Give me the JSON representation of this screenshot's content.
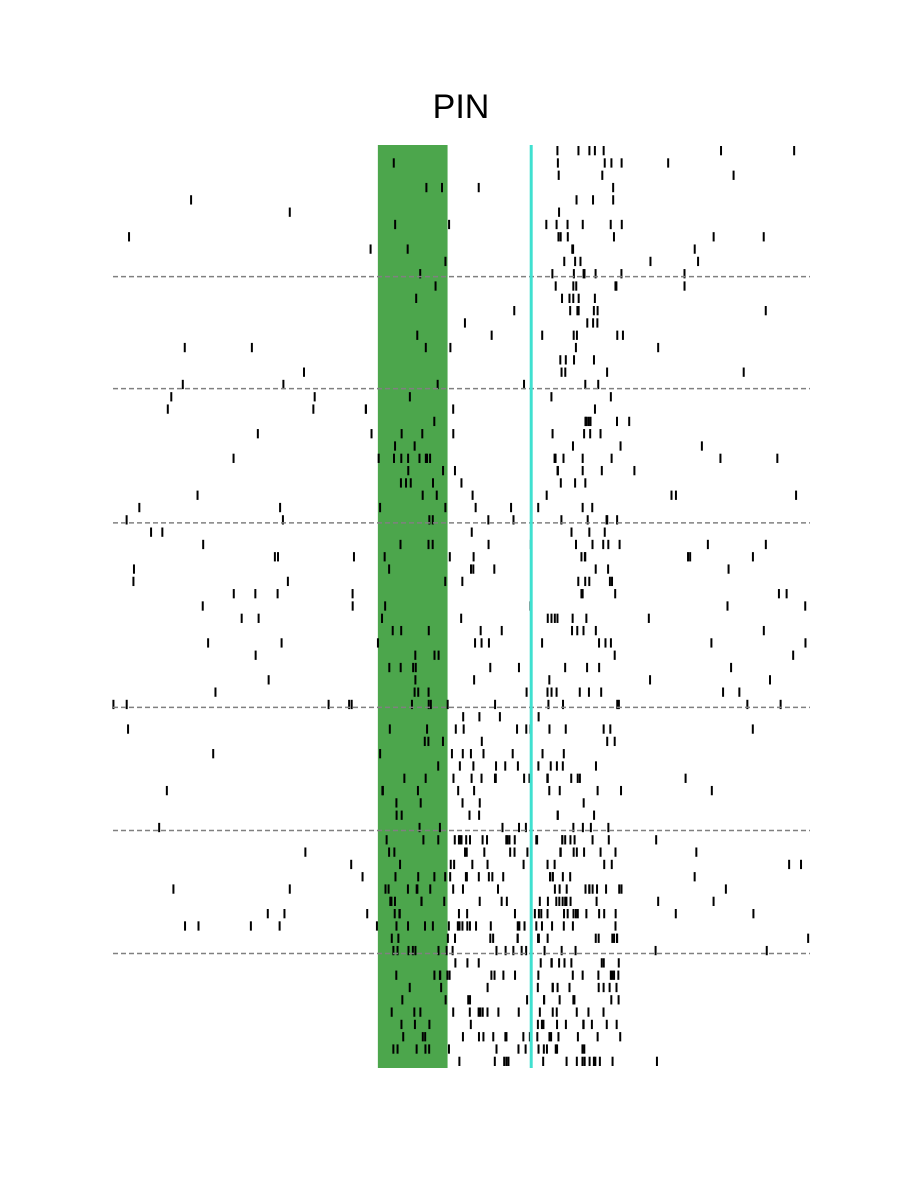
{
  "chart_data": {
    "type": "raster",
    "title": "PIN",
    "xlabel": "",
    "ylabel": "",
    "grid": false,
    "legend": "none",
    "shaded_interval": [
      -1.1,
      -0.6
    ],
    "event_marker": 0,
    "xlim": [
      -3,
      2
    ],
    "ylim": [
      0,
      75
    ],
    "group_boundaries": [
      10.7,
      19.8,
      30.7,
      45.7,
      55.7,
      65.7
    ],
    "colors": {
      "shaded_interval": "#4ca64c",
      "event_marker": "#40e0d0",
      "tick": "#000000",
      "group_boundary": "#808080"
    },
    "groups": [
      {
        "trials": 11,
        "pre_rate": 0.15,
        "window_rate": 1.2,
        "post_rate": 0.6,
        "onset_offset": 0.08,
        "response_rate": 7,
        "late_rate": 0.3
      },
      {
        "trials": 9,
        "pre_rate": 0.4,
        "window_rate": 2.6,
        "post_rate": 1.2,
        "onset_offset": 0.05,
        "response_rate": 6,
        "late_rate": 0.5
      },
      {
        "trials": 11,
        "pre_rate": 0.5,
        "window_rate": 2.8,
        "post_rate": 2.4,
        "onset_offset": 0.05,
        "response_rate": 4,
        "late_rate": 0.4
      },
      {
        "trials": 15,
        "pre_rate": 0.7,
        "window_rate": 4.2,
        "post_rate": 2.8,
        "onset_offset": 0.05,
        "response_rate": 6,
        "late_rate": 0.8
      },
      {
        "trials": 10,
        "pre_rate": 0.2,
        "window_rate": 3.2,
        "post_rate": 5.2,
        "onset_offset": 0.05,
        "response_rate": 6,
        "late_rate": 0.3
      },
      {
        "trials": 10,
        "pre_rate": 0.6,
        "window_rate": 9.5,
        "post_rate": 11,
        "onset_offset": 0.02,
        "response_rate": 12,
        "late_rate": 0.8
      },
      {
        "trials": 9,
        "pre_rate": 0.1,
        "window_rate": 4.6,
        "post_rate": 7.2,
        "onset_offset": 0.03,
        "response_rate": 10,
        "late_rate": 0.2
      }
    ]
  }
}
